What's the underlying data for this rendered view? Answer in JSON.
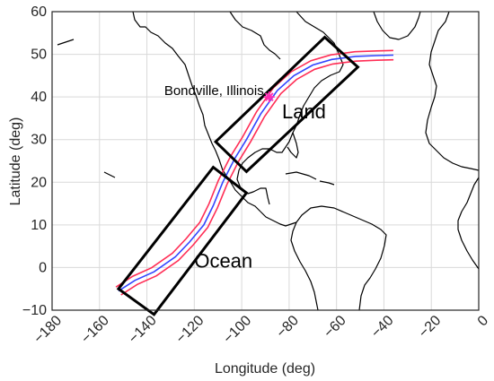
{
  "chart_data": {
    "type": "map",
    "xlabel": "Longitude (deg)",
    "ylabel": "Latitude (deg)",
    "xlim": [
      -180,
      0
    ],
    "ylim": [
      -10,
      60
    ],
    "xticks": [
      -180,
      -160,
      -140,
      -120,
      -100,
      -80,
      -60,
      -40,
      -20,
      0
    ],
    "yticks": [
      -10,
      0,
      10,
      20,
      30,
      40,
      50,
      60
    ],
    "xtick_labels": [
      "−180",
      "−160",
      "−140",
      "−120",
      "−100",
      "−80",
      "−60",
      "−40",
      "−20",
      "0"
    ],
    "ytick_labels": [
      "−10",
      "0",
      "10",
      "20",
      "30",
      "40",
      "50",
      "60"
    ],
    "grid": true,
    "colors": {
      "track_outer": "#ff2d55",
      "track_inner": "#3344ff",
      "boxes": "#000000",
      "site_marker": "#ff2db4"
    },
    "site": {
      "label": "Bondville, Illinois",
      "lon": -88.4,
      "lat": 40.0
    },
    "regions": [
      {
        "label": "Land",
        "corners": [
          [
            -65,
            54
          ],
          [
            -51,
            47
          ],
          [
            -98,
            22.5
          ],
          [
            -111,
            29.5
          ]
        ]
      },
      {
        "label": "Ocean",
        "corners": [
          [
            -112,
            23.5
          ],
          [
            -98,
            17.5
          ],
          [
            -137,
            -11
          ],
          [
            -152,
            -5
          ]
        ]
      }
    ],
    "track": {
      "center": [
        [
          -152,
          -5.5
        ],
        [
          -145,
          -3
        ],
        [
          -137,
          -1
        ],
        [
          -128,
          2.5
        ],
        [
          -122,
          6
        ],
        [
          -116,
          10
        ],
        [
          -112,
          14.5
        ],
        [
          -108,
          20
        ],
        [
          -103,
          25.5
        ],
        [
          -98,
          30
        ],
        [
          -92,
          36
        ],
        [
          -85,
          41.5
        ],
        [
          -78,
          45
        ],
        [
          -70,
          47.5
        ],
        [
          -62,
          48.8
        ],
        [
          -52,
          49.5
        ],
        [
          -43,
          49.7
        ],
        [
          -36,
          49.8
        ]
      ],
      "offset_deg": 0.9
    }
  }
}
